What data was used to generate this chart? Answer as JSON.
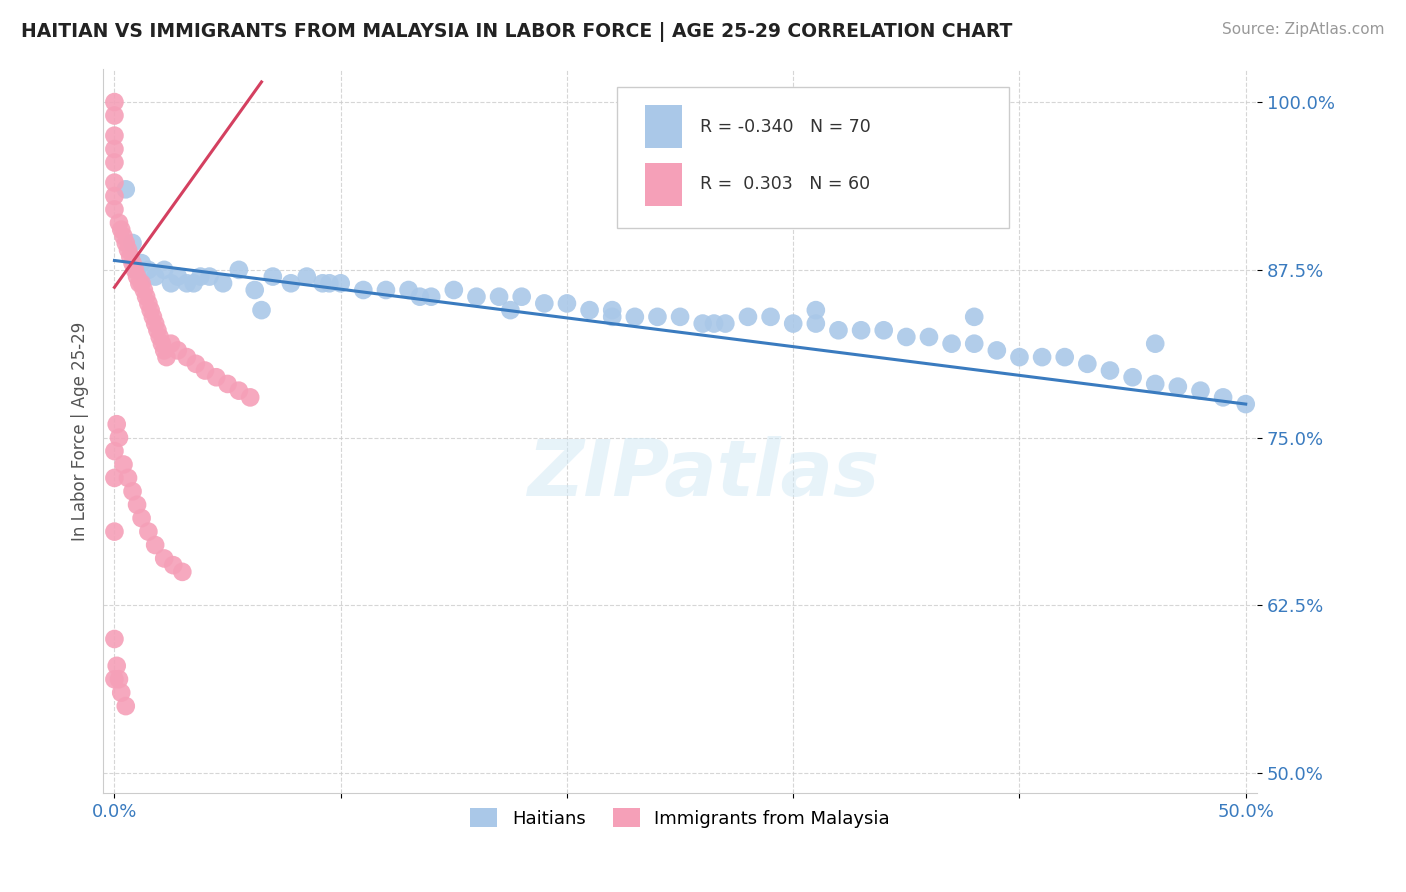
{
  "title": "HAITIAN VS IMMIGRANTS FROM MALAYSIA IN LABOR FORCE | AGE 25-29 CORRELATION CHART",
  "source": "Source: ZipAtlas.com",
  "ylabel": "In Labor Force | Age 25-29",
  "xlim": [
    -0.005,
    0.505
  ],
  "ylim": [
    0.485,
    1.025
  ],
  "xticks": [
    0.0,
    0.1,
    0.2,
    0.3,
    0.4,
    0.5
  ],
  "xtick_labels": [
    "0.0%",
    "",
    "",
    "",
    "",
    "50.0%"
  ],
  "ytick_labels": [
    "50.0%",
    "62.5%",
    "75.0%",
    "87.5%",
    "100.0%"
  ],
  "yticks": [
    0.5,
    0.625,
    0.75,
    0.875,
    1.0
  ],
  "blue_R": "-0.340",
  "blue_N": "70",
  "pink_R": "0.303",
  "pink_N": "60",
  "blue_color": "#aac8e8",
  "pink_color": "#f5a0b8",
  "blue_line_color": "#3a7bbf",
  "pink_line_color": "#d44060",
  "legend_label_blue": "Haitians",
  "legend_label_pink": "Immigrants from Malaysia",
  "watermark": "ZIPatlas",
  "blue_scatter_x": [
    0.005,
    0.008,
    0.01,
    0.012,
    0.015,
    0.018,
    0.022,
    0.025,
    0.028,
    0.032,
    0.038,
    0.042,
    0.048,
    0.055,
    0.062,
    0.07,
    0.078,
    0.085,
    0.092,
    0.1,
    0.11,
    0.12,
    0.13,
    0.14,
    0.15,
    0.16,
    0.17,
    0.18,
    0.19,
    0.2,
    0.21,
    0.22,
    0.23,
    0.24,
    0.25,
    0.26,
    0.27,
    0.28,
    0.29,
    0.3,
    0.31,
    0.32,
    0.33,
    0.34,
    0.35,
    0.36,
    0.37,
    0.38,
    0.39,
    0.4,
    0.41,
    0.42,
    0.43,
    0.44,
    0.45,
    0.46,
    0.47,
    0.48,
    0.49,
    0.5,
    0.035,
    0.065,
    0.095,
    0.135,
    0.175,
    0.22,
    0.265,
    0.31,
    0.38,
    0.46
  ],
  "blue_scatter_y": [
    0.935,
    0.895,
    0.875,
    0.88,
    0.875,
    0.87,
    0.875,
    0.865,
    0.87,
    0.865,
    0.87,
    0.87,
    0.865,
    0.875,
    0.86,
    0.87,
    0.865,
    0.87,
    0.865,
    0.865,
    0.86,
    0.86,
    0.86,
    0.855,
    0.86,
    0.855,
    0.855,
    0.855,
    0.85,
    0.85,
    0.845,
    0.845,
    0.84,
    0.84,
    0.84,
    0.835,
    0.835,
    0.84,
    0.84,
    0.835,
    0.835,
    0.83,
    0.83,
    0.83,
    0.825,
    0.825,
    0.82,
    0.82,
    0.815,
    0.81,
    0.81,
    0.81,
    0.805,
    0.8,
    0.795,
    0.79,
    0.788,
    0.785,
    0.78,
    0.775,
    0.865,
    0.845,
    0.865,
    0.855,
    0.845,
    0.84,
    0.835,
    0.845,
    0.84,
    0.82
  ],
  "pink_scatter_x": [
    0.0,
    0.0,
    0.0,
    0.0,
    0.0,
    0.0,
    0.0,
    0.0,
    0.002,
    0.003,
    0.004,
    0.005,
    0.006,
    0.007,
    0.008,
    0.009,
    0.01,
    0.011,
    0.012,
    0.013,
    0.014,
    0.015,
    0.016,
    0.017,
    0.018,
    0.019,
    0.02,
    0.021,
    0.022,
    0.023,
    0.025,
    0.028,
    0.032,
    0.036,
    0.04,
    0.045,
    0.05,
    0.055,
    0.06,
    0.0,
    0.0,
    0.0,
    0.001,
    0.002,
    0.004,
    0.006,
    0.008,
    0.01,
    0.012,
    0.015,
    0.018,
    0.022,
    0.026,
    0.03,
    0.0,
    0.0,
    0.001,
    0.002,
    0.003,
    0.005
  ],
  "pink_scatter_y": [
    1.0,
    0.99,
    0.975,
    0.965,
    0.955,
    0.94,
    0.93,
    0.92,
    0.91,
    0.905,
    0.9,
    0.895,
    0.89,
    0.885,
    0.88,
    0.875,
    0.87,
    0.865,
    0.865,
    0.86,
    0.855,
    0.85,
    0.845,
    0.84,
    0.835,
    0.83,
    0.825,
    0.82,
    0.815,
    0.81,
    0.82,
    0.815,
    0.81,
    0.805,
    0.8,
    0.795,
    0.79,
    0.785,
    0.78,
    0.74,
    0.72,
    0.68,
    0.76,
    0.75,
    0.73,
    0.72,
    0.71,
    0.7,
    0.69,
    0.68,
    0.67,
    0.66,
    0.655,
    0.65,
    0.6,
    0.57,
    0.58,
    0.57,
    0.56,
    0.55
  ],
  "blue_line_x": [
    0.0,
    0.5
  ],
  "blue_line_y": [
    0.882,
    0.775
  ],
  "pink_line_x": [
    0.0,
    0.065
  ],
  "pink_line_y": [
    0.862,
    1.015
  ]
}
